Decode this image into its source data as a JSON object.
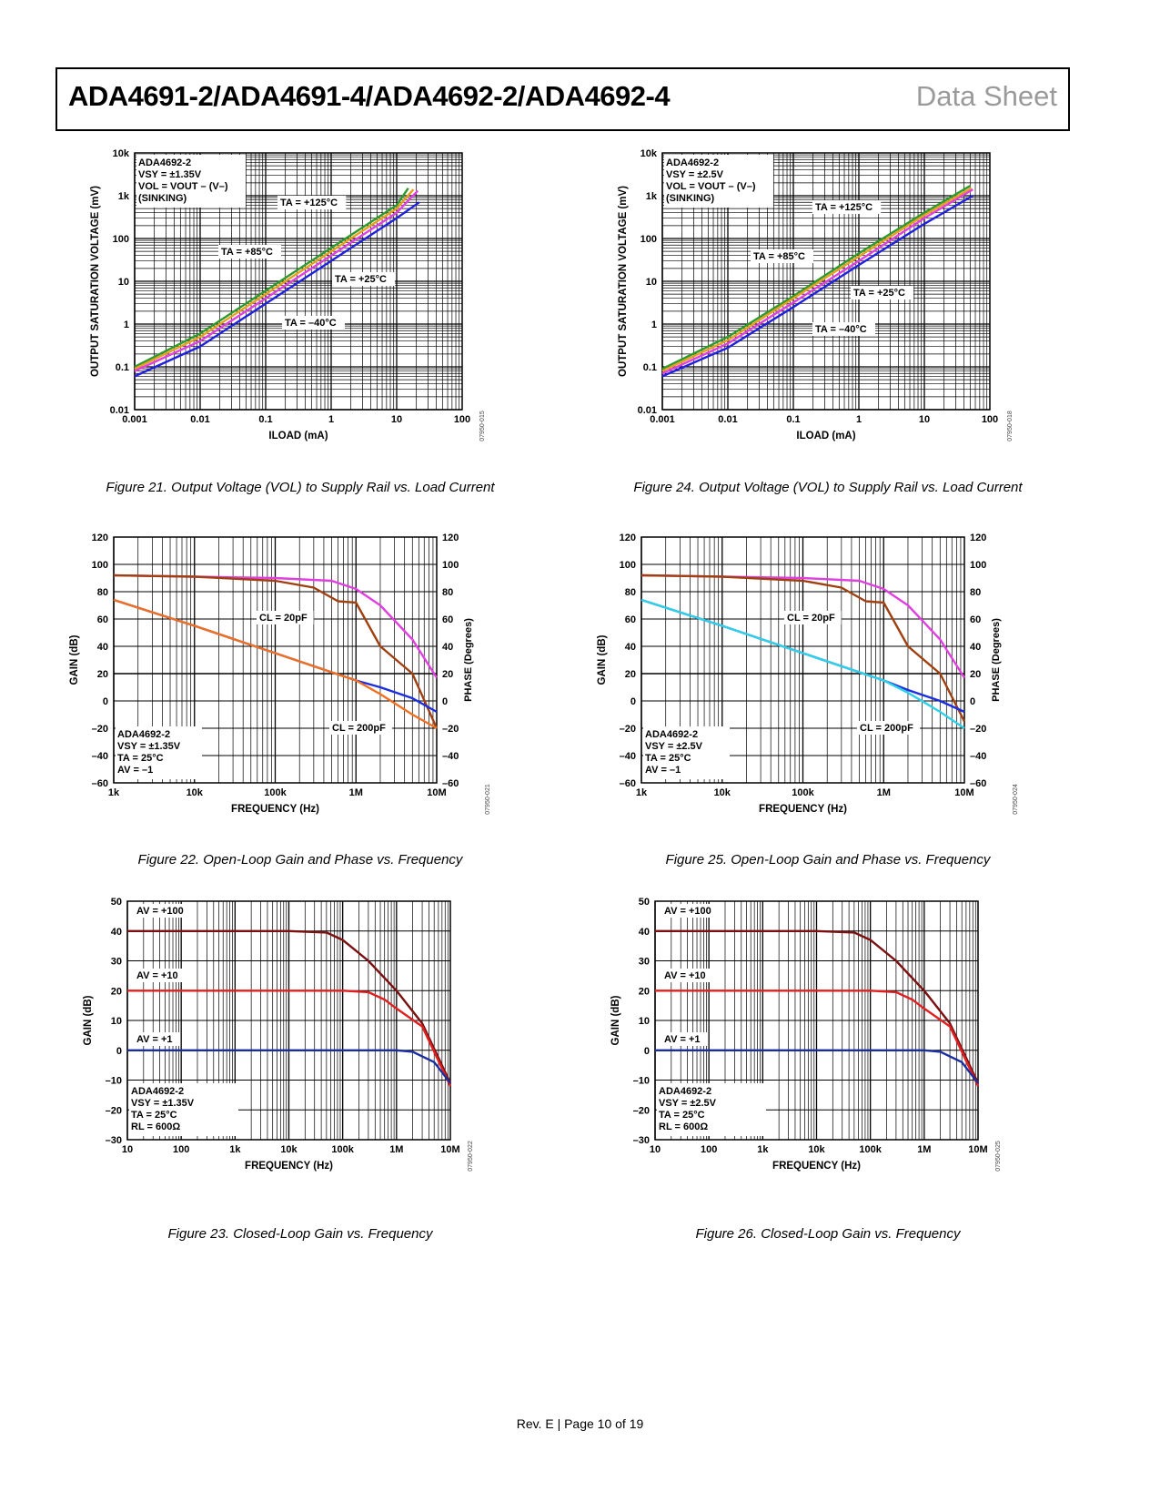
{
  "header": {
    "title": "ADA4691-2/ADA4691-4/ADA4692-2/ADA4692-4",
    "tag": "Data Sheet"
  },
  "footer": {
    "text": "Rev. E | Page 10 of 19"
  },
  "captions": [
    "Figure 21. Output Voltage (VOL) to Supply Rail vs. Load Current",
    "Figure 22. Open-Loop Gain and Phase vs. Frequency",
    "Figure 23. Closed-Loop Gain vs. Frequency",
    "Figure 24. Output Voltage (VOL) to Supply Rail vs. Load Current",
    "Figure 25. Open-Loop Gain and Phase vs. Frequency",
    "Figure 26. Closed-Loop Gain vs. Frequency"
  ],
  "chart_data": [
    {
      "type": "line",
      "id": "07950-015",
      "xlabel": "ILOAD (mA)",
      "ylabel": "OUTPUT SATURATION VOLTAGE (mV)",
      "xlog": true,
      "ylog": true,
      "xlim": [
        0.001,
        100
      ],
      "ylim": [
        0.01,
        10000
      ],
      "xticks": [
        "0.001",
        "0.01",
        "0.1",
        "1",
        "10",
        "100"
      ],
      "yticks": [
        "0.01",
        "0.1",
        "1",
        "10",
        "100",
        "1k",
        "10k"
      ],
      "legend": [
        "ADA4692-2",
        "VSY = ±1.35V",
        "VOL = VOUT – (V–)",
        "(SINKING)"
      ],
      "series": [
        {
          "name": "TA = +125°C",
          "color": "#2e9a2e",
          "x": [
            0.001,
            0.01,
            0.1,
            1,
            10,
            15
          ],
          "y": [
            0.1,
            0.6,
            6,
            60,
            600,
            1500
          ]
        },
        {
          "name": "TA = +85°C",
          "color": "#e8a020",
          "x": [
            0.001,
            0.01,
            0.1,
            1,
            10,
            18
          ],
          "y": [
            0.09,
            0.5,
            5,
            50,
            500,
            1400
          ]
        },
        {
          "name": "TA = +25°C",
          "color": "#e040e0",
          "x": [
            0.001,
            0.01,
            0.1,
            1,
            10,
            21
          ],
          "y": [
            0.08,
            0.4,
            4,
            40,
            400,
            1300
          ]
        },
        {
          "name": "TA = –40°C",
          "color": "#2020e0",
          "x": [
            0.001,
            0.01,
            0.1,
            1,
            10,
            22
          ],
          "y": [
            0.06,
            0.3,
            3,
            30,
            300,
            700
          ]
        }
      ],
      "annotations": [
        "TA = +125°C",
        "TA = +85°C",
        "TA = +25°C",
        "TA = –40°C"
      ]
    },
    {
      "type": "line",
      "id": "07950-021",
      "xlabel": "FREQUENCY (Hz)",
      "ylabel": "GAIN (dB)",
      "y2label": "PHASE (Degrees)",
      "xlog": true,
      "xlim": [
        1000,
        10000000
      ],
      "ylim": [
        -60,
        120
      ],
      "xticks": [
        "1k",
        "10k",
        "100k",
        "1M",
        "10M"
      ],
      "yticks": [
        "–60",
        "–40",
        "–20",
        "0",
        "20",
        "40",
        "60",
        "80",
        "100",
        "120"
      ],
      "y2ticks": [
        "–60",
        "–40",
        "–20",
        "0",
        "20",
        "40",
        "60",
        "80",
        "100",
        "120"
      ],
      "legend": [
        "ADA4692-2",
        "VSY = ±1.35V",
        "TA = 25°C",
        "AV = –1"
      ],
      "series": [
        {
          "name": "",
          "color": "#e040e0",
          "x": [
            1000,
            10000,
            100000,
            500000,
            1000000,
            2000000,
            5000000,
            10000000
          ],
          "y": [
            92,
            91,
            90,
            88,
            82,
            70,
            45,
            17
          ]
        },
        {
          "name": "",
          "color": "#a04010",
          "x": [
            1000,
            10000,
            100000,
            300000,
            600000,
            1000000,
            2000000,
            5000000,
            10000000
          ],
          "y": [
            92,
            91,
            88,
            83,
            73,
            72,
            40,
            20,
            -20
          ]
        },
        {
          "name": "",
          "color": "#1a2ee0",
          "x": [
            1000,
            10000,
            100000,
            1000000,
            2000000,
            5000000,
            10000000
          ],
          "y": [
            74,
            55,
            35,
            15,
            10,
            2,
            -8
          ]
        },
        {
          "name": "",
          "color": "#f07020",
          "x": [
            1000,
            10000,
            100000,
            1000000,
            2000000,
            5000000,
            10000000
          ],
          "y": [
            74,
            55,
            35,
            15,
            5,
            -10,
            -20
          ]
        }
      ],
      "annotations": [
        "CL = 20pF",
        "CL = 200pF"
      ]
    },
    {
      "type": "line",
      "id": "07950-022",
      "xlabel": "FREQUENCY (Hz)",
      "ylabel": "GAIN (dB)",
      "xlog": true,
      "xlim": [
        10,
        10000000
      ],
      "ylim": [
        -30,
        50
      ],
      "xticks": [
        "10",
        "100",
        "1k",
        "10k",
        "100k",
        "1M",
        "10M"
      ],
      "yticks": [
        "–30",
        "–20",
        "–10",
        "0",
        "10",
        "20",
        "30",
        "40",
        "50"
      ],
      "legend": [
        "ADA4692-2",
        "VSY = ±1.35V",
        "TA = 25°C",
        "RL = 600Ω"
      ],
      "series": [
        {
          "name": "AV = +100",
          "color": "#7a1010",
          "x": [
            10,
            100,
            1000,
            10000,
            50000,
            100000,
            300000,
            1000000,
            3000000,
            10000000
          ],
          "y": [
            40,
            40,
            40,
            40,
            39.5,
            37,
            30,
            20,
            9,
            -11
          ]
        },
        {
          "name": "AV = +10",
          "color": "#e02020",
          "x": [
            10,
            100,
            1000,
            10000,
            100000,
            300000,
            600000,
            1000000,
            3000000,
            10000000
          ],
          "y": [
            20,
            20,
            20,
            20,
            20,
            19.5,
            17,
            14,
            8,
            -12
          ]
        },
        {
          "name": "AV = +1",
          "color": "#1a2ea0",
          "x": [
            10,
            100,
            1000,
            10000,
            100000,
            1000000,
            2000000,
            5000000,
            10000000
          ],
          "y": [
            0,
            0,
            0,
            0,
            0,
            0,
            -0.5,
            -4,
            -11
          ]
        }
      ],
      "annotations": [
        "AV = +100",
        "AV = +10",
        "AV = +1"
      ]
    },
    {
      "type": "line",
      "id": "07950-018",
      "xlabel": "ILOAD (mA)",
      "ylabel": "OUTPUT SATURATION VOLTAGE (mV)",
      "xlog": true,
      "ylog": true,
      "xlim": [
        0.001,
        100
      ],
      "ylim": [
        0.01,
        10000
      ],
      "xticks": [
        "0.001",
        "0.01",
        "0.1",
        "1",
        "10",
        "100"
      ],
      "yticks": [
        "0.01",
        "0.1",
        "1",
        "10",
        "100",
        "1k",
        "10k"
      ],
      "legend": [
        "ADA4692-2",
        "VSY = ±2.5V",
        "VOL = VOUT – (V–)",
        "(SINKING)"
      ],
      "series": [
        {
          "name": "TA = +125°C",
          "color": "#2e9a2e",
          "x": [
            0.001,
            0.01,
            0.1,
            1,
            10,
            50
          ],
          "y": [
            0.09,
            0.5,
            4.5,
            45,
            400,
            1700
          ]
        },
        {
          "name": "TA = +85°C",
          "color": "#e8a020",
          "x": [
            0.001,
            0.01,
            0.1,
            1,
            10,
            52
          ],
          "y": [
            0.08,
            0.42,
            4,
            38,
            350,
            1500
          ]
        },
        {
          "name": "TA = +25°C",
          "color": "#e040e0",
          "x": [
            0.001,
            0.01,
            0.1,
            1,
            10,
            55
          ],
          "y": [
            0.07,
            0.35,
            3.2,
            30,
            300,
            1400
          ]
        },
        {
          "name": "TA = –40°C",
          "color": "#2020e0",
          "x": [
            0.001,
            0.01,
            0.1,
            1,
            10,
            55
          ],
          "y": [
            0.06,
            0.28,
            2.5,
            24,
            220,
            1000
          ]
        }
      ],
      "annotations": [
        "TA = +125°C",
        "TA = +85°C",
        "TA = +25°C",
        "TA = –40°C"
      ]
    },
    {
      "type": "line",
      "id": "07950-024",
      "xlabel": "FREQUENCY (Hz)",
      "ylabel": "GAIN (dB)",
      "y2label": "PHASE (Degrees)",
      "xlog": true,
      "xlim": [
        1000,
        10000000
      ],
      "ylim": [
        -60,
        120
      ],
      "xticks": [
        "1k",
        "10k",
        "100k",
        "1M",
        "10M"
      ],
      "yticks": [
        "–60",
        "–40",
        "–20",
        "0",
        "20",
        "40",
        "60",
        "80",
        "100",
        "120"
      ],
      "y2ticks": [
        "–60",
        "–40",
        "–20",
        "0",
        "20",
        "40",
        "60",
        "80",
        "100",
        "120"
      ],
      "legend": [
        "ADA4692-2",
        "VSY = ±2.5V",
        "TA = 25°C",
        "AV = –1"
      ],
      "series": [
        {
          "name": "",
          "color": "#e040e0",
          "x": [
            1000,
            10000,
            100000,
            500000,
            1000000,
            2000000,
            5000000,
            10000000
          ],
          "y": [
            92,
            91,
            90,
            88,
            82,
            70,
            45,
            17
          ]
        },
        {
          "name": "",
          "color": "#a04010",
          "x": [
            1000,
            10000,
            100000,
            300000,
            600000,
            1000000,
            2000000,
            5000000,
            10000000
          ],
          "y": [
            92,
            91,
            88,
            83,
            73,
            72,
            40,
            20,
            -15
          ]
        },
        {
          "name": "",
          "color": "#1a2ee0",
          "x": [
            1000,
            10000,
            100000,
            1000000,
            2000000,
            5000000,
            10000000
          ],
          "y": [
            74,
            55,
            35,
            15,
            8,
            0,
            -8
          ]
        },
        {
          "name": "",
          "color": "#30d0e8",
          "x": [
            1000,
            10000,
            100000,
            1000000,
            2000000,
            5000000,
            10000000
          ],
          "y": [
            74,
            55,
            35,
            15,
            6,
            -8,
            -20
          ]
        }
      ],
      "annotations": [
        "CL = 20pF",
        "CL = 200pF"
      ]
    },
    {
      "type": "line",
      "id": "07950-025",
      "xlabel": "FREQUENCY (Hz)",
      "ylabel": "GAIN (dB)",
      "xlog": true,
      "xlim": [
        10,
        10000000
      ],
      "ylim": [
        -30,
        50
      ],
      "xticks": [
        "10",
        "100",
        "1k",
        "10k",
        "100k",
        "1M",
        "10M"
      ],
      "yticks": [
        "–30",
        "–20",
        "–10",
        "0",
        "10",
        "20",
        "30",
        "40",
        "50"
      ],
      "legend": [
        "ADA4692-2",
        "VSY = ±2.5V",
        "TA = 25°C",
        "RL = 600Ω"
      ],
      "series": [
        {
          "name": "AV = +100",
          "color": "#7a1010",
          "x": [
            10,
            100,
            1000,
            10000,
            50000,
            100000,
            300000,
            1000000,
            3000000,
            10000000
          ],
          "y": [
            40,
            40,
            40,
            40,
            39.5,
            37,
            30,
            20,
            9,
            -11
          ]
        },
        {
          "name": "AV = +10",
          "color": "#e02020",
          "x": [
            10,
            100,
            1000,
            10000,
            100000,
            300000,
            600000,
            1000000,
            3000000,
            10000000
          ],
          "y": [
            20,
            20,
            20,
            20,
            20,
            19.5,
            17,
            14,
            8,
            -12
          ]
        },
        {
          "name": "AV = +1",
          "color": "#1a2ea0",
          "x": [
            10,
            100,
            1000,
            10000,
            100000,
            1000000,
            2000000,
            5000000,
            10000000
          ],
          "y": [
            0,
            0,
            0,
            0,
            0,
            0,
            -0.5,
            -4,
            -11
          ]
        }
      ],
      "annotations": [
        "AV = +100",
        "AV = +10",
        "AV = +1"
      ]
    }
  ]
}
